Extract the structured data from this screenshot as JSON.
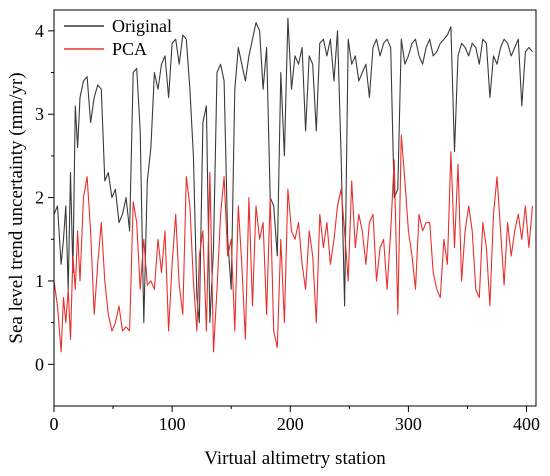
{
  "chart_data": {
    "type": "line",
    "title": "",
    "xlabel": "Virtual altimetry station",
    "ylabel": "Sea level trend uncertainty (mm/yr)",
    "xlim": [
      0,
      408
    ],
    "ylim": [
      -0.5,
      4.25
    ],
    "x_ticks": [
      0,
      100,
      200,
      300,
      400
    ],
    "y_ticks": [
      0,
      1,
      2,
      3,
      4
    ],
    "grid": false,
    "legend": "top-left",
    "series": [
      {
        "name": "Original",
        "color": "#3a3a3a",
        "x": [
          0,
          3,
          6,
          8,
          10,
          12,
          14,
          16,
          18,
          20,
          22,
          25,
          28,
          31,
          34,
          37,
          40,
          43,
          46,
          49,
          52,
          55,
          58,
          61,
          64,
          67,
          70,
          73,
          76,
          79,
          82,
          85,
          88,
          91,
          94,
          97,
          100,
          103,
          106,
          109,
          112,
          115,
          118,
          121,
          123,
          126,
          129,
          132,
          135,
          138,
          141,
          144,
          147,
          150,
          153,
          156,
          159,
          162,
          165,
          168,
          171,
          174,
          177,
          180,
          183,
          186,
          189,
          192,
          195,
          198,
          201,
          204,
          207,
          210,
          213,
          216,
          219,
          222,
          225,
          228,
          231,
          234,
          237,
          240,
          243,
          246,
          249,
          252,
          255,
          258,
          261,
          264,
          267,
          270,
          273,
          276,
          279,
          282,
          285,
          288,
          291,
          294,
          297,
          300,
          303,
          306,
          309,
          312,
          315,
          318,
          321,
          324,
          327,
          330,
          333,
          336,
          339,
          342,
          345,
          348,
          351,
          354,
          357,
          360,
          363,
          366,
          369,
          372,
          375,
          378,
          381,
          384,
          387,
          390,
          393,
          396,
          399,
          402,
          405
        ],
        "values": [
          1.8,
          1.9,
          1.2,
          1.5,
          1.9,
          0.9,
          2.3,
          1.1,
          3.1,
          2.6,
          3.2,
          3.4,
          3.45,
          2.9,
          3.2,
          3.35,
          3.3,
          2.2,
          2.3,
          2.0,
          2.1,
          1.7,
          1.8,
          2.0,
          1.6,
          3.5,
          3.55,
          2.8,
          0.5,
          2.2,
          2.6,
          3.5,
          3.3,
          3.6,
          3.7,
          3.2,
          3.85,
          3.9,
          3.6,
          3.95,
          3.9,
          3.3,
          2.5,
          0.8,
          0.5,
          2.9,
          3.1,
          0.5,
          1.4,
          3.5,
          3.6,
          3.4,
          1.5,
          0.9,
          3.3,
          3.8,
          3.6,
          3.4,
          3.7,
          3.9,
          4.1,
          4.0,
          3.3,
          3.8,
          2.0,
          1.9,
          1.3,
          3.5,
          2.5,
          4.15,
          3.3,
          3.7,
          3.6,
          3.8,
          2.8,
          3.7,
          3.6,
          2.8,
          3.85,
          3.9,
          3.7,
          3.9,
          3.4,
          4.0,
          2.5,
          0.7,
          3.9,
          3.6,
          3.7,
          3.4,
          3.5,
          3.6,
          3.2,
          3.8,
          3.9,
          3.7,
          3.85,
          3.9,
          3.8,
          2.0,
          2.1,
          3.9,
          3.6,
          3.7,
          3.85,
          3.9,
          3.7,
          3.6,
          3.8,
          3.9,
          3.7,
          3.75,
          3.85,
          3.9,
          3.95,
          4.05,
          2.55,
          3.7,
          3.85,
          3.8,
          3.7,
          3.85,
          3.8,
          3.6,
          3.9,
          3.85,
          3.2,
          3.7,
          3.6,
          3.8,
          3.9,
          3.85,
          3.7,
          3.8,
          3.9,
          3.1,
          3.75,
          3.8,
          3.75
        ]
      },
      {
        "name": "PCA",
        "color": "#e8302d",
        "x": [
          0,
          3,
          6,
          8,
          10,
          12,
          14,
          16,
          18,
          20,
          22,
          25,
          28,
          31,
          34,
          37,
          40,
          43,
          46,
          49,
          52,
          55,
          58,
          61,
          64,
          67,
          70,
          73,
          76,
          79,
          82,
          85,
          88,
          91,
          94,
          97,
          100,
          103,
          106,
          109,
          112,
          115,
          118,
          121,
          123,
          126,
          129,
          132,
          135,
          138,
          141,
          144,
          147,
          150,
          153,
          156,
          159,
          162,
          165,
          168,
          171,
          174,
          177,
          180,
          183,
          186,
          189,
          192,
          195,
          198,
          201,
          204,
          207,
          210,
          213,
          216,
          219,
          222,
          225,
          228,
          231,
          234,
          237,
          240,
          243,
          246,
          249,
          252,
          255,
          258,
          261,
          264,
          267,
          270,
          273,
          276,
          279,
          282,
          285,
          288,
          291,
          294,
          297,
          300,
          303,
          306,
          309,
          312,
          315,
          318,
          321,
          324,
          327,
          330,
          333,
          336,
          339,
          342,
          345,
          348,
          351,
          354,
          357,
          360,
          363,
          366,
          369,
          372,
          375,
          378,
          381,
          384,
          387,
          390,
          393,
          396,
          399,
          402,
          405
        ],
        "values": [
          1.0,
          0.7,
          0.15,
          0.8,
          0.5,
          0.9,
          0.3,
          1.3,
          0.9,
          1.6,
          1.0,
          2.0,
          2.25,
          1.6,
          0.6,
          1.2,
          1.7,
          1.0,
          0.6,
          0.4,
          0.5,
          0.7,
          0.4,
          0.45,
          0.4,
          1.95,
          1.7,
          0.9,
          1.5,
          0.95,
          1.0,
          0.9,
          1.5,
          1.1,
          1.6,
          0.4,
          1.2,
          1.8,
          0.95,
          0.6,
          2.25,
          1.9,
          1.0,
          0.4,
          1.3,
          1.6,
          0.4,
          2.3,
          0.15,
          0.9,
          1.8,
          2.25,
          1.3,
          1.5,
          0.4,
          1.9,
          1.2,
          0.3,
          2.0,
          0.7,
          1.9,
          1.5,
          1.7,
          0.6,
          2.0,
          0.4,
          0.2,
          1.5,
          0.5,
          2.1,
          1.6,
          1.5,
          1.7,
          1.2,
          0.9,
          1.6,
          1.3,
          0.5,
          1.8,
          1.4,
          1.7,
          1.2,
          1.5,
          1.9,
          2.1,
          1.6,
          1.0,
          2.2,
          1.4,
          1.8,
          1.6,
          1.2,
          1.7,
          1.8,
          1.0,
          1.4,
          1.5,
          0.9,
          1.6,
          2.45,
          0.6,
          2.75,
          2.2,
          1.6,
          1.3,
          0.9,
          1.8,
          1.6,
          1.7,
          1.7,
          1.1,
          0.9,
          0.8,
          1.5,
          1.2,
          2.55,
          1.4,
          2.4,
          1.0,
          1.6,
          1.9,
          1.6,
          0.9,
          0.8,
          1.7,
          1.4,
          0.7,
          1.8,
          2.25,
          1.6,
          0.95,
          1.7,
          1.3,
          1.6,
          1.8,
          1.5,
          1.9,
          1.4,
          1.9
        ]
      }
    ]
  }
}
